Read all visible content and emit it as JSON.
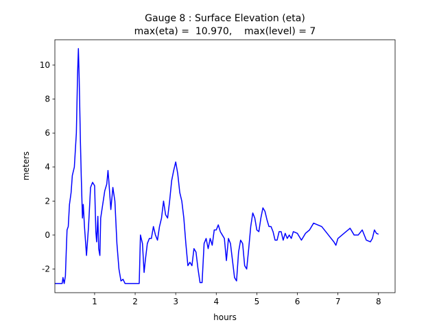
{
  "chart_data": {
    "type": "line",
    "title": "Gauge 8 : Surface Elevation (eta)",
    "subtitle": "max(eta) =  10.970,    max(level) = 7",
    "xlabel": "hours",
    "ylabel": "meters",
    "color": "#0000ff",
    "xlim": [
      0.02,
      8.41
    ],
    "ylim": [
      -3.39,
      11.49
    ],
    "xticks": [
      1,
      2,
      3,
      4,
      5,
      6,
      7,
      8
    ],
    "yticks": [
      -2,
      0,
      2,
      4,
      6,
      8,
      10
    ],
    "grid": false,
    "x": [
      0.02,
      0.2,
      0.22,
      0.25,
      0.28,
      0.3,
      0.32,
      0.35,
      0.38,
      0.42,
      0.45,
      0.5,
      0.55,
      0.58,
      0.6,
      0.62,
      0.65,
      0.67,
      0.7,
      0.72,
      0.75,
      0.8,
      0.85,
      0.9,
      0.95,
      1.0,
      1.03,
      1.05,
      1.08,
      1.1,
      1.13,
      1.15,
      1.2,
      1.25,
      1.3,
      1.33,
      1.35,
      1.4,
      1.45,
      1.5,
      1.55,
      1.6,
      1.65,
      1.7,
      1.75,
      1.9,
      2.1,
      2.13,
      2.18,
      2.22,
      2.25,
      2.3,
      2.35,
      2.4,
      2.45,
      2.5,
      2.55,
      2.6,
      2.65,
      2.7,
      2.75,
      2.8,
      2.85,
      2.9,
      2.95,
      3.0,
      3.05,
      3.1,
      3.15,
      3.2,
      3.25,
      3.3,
      3.35,
      3.4,
      3.45,
      3.5,
      3.55,
      3.6,
      3.65,
      3.7,
      3.75,
      3.8,
      3.85,
      3.9,
      3.95,
      4.0,
      4.05,
      4.1,
      4.15,
      4.2,
      4.25,
      4.3,
      4.35,
      4.4,
      4.45,
      4.5,
      4.55,
      4.6,
      4.65,
      4.7,
      4.75,
      4.8,
      4.85,
      4.9,
      4.95,
      5.0,
      5.05,
      5.1,
      5.15,
      5.2,
      5.25,
      5.3,
      5.35,
      5.4,
      5.45,
      5.5,
      5.55,
      5.6,
      5.65,
      5.7,
      5.75,
      5.8,
      5.85,
      5.9,
      6.0,
      6.1,
      6.2,
      6.3,
      6.4,
      6.5,
      6.6,
      6.7,
      6.8,
      6.9,
      6.95,
      7.0,
      7.1,
      7.2,
      7.3,
      7.4,
      7.5,
      7.6,
      7.7,
      7.8,
      7.85,
      7.9,
      7.95,
      8.0
    ],
    "values": [
      -2.85,
      -2.85,
      -2.5,
      -2.85,
      -2.4,
      -1.0,
      0.3,
      0.5,
      1.8,
      2.5,
      3.5,
      4.0,
      6.0,
      9.5,
      10.97,
      9.2,
      5.5,
      3.5,
      1.0,
      1.8,
      0.5,
      -1.2,
      0.5,
      2.8,
      3.1,
      2.9,
      0.2,
      -0.4,
      1.1,
      -0.8,
      -1.2,
      1.0,
      1.8,
      2.6,
      3.0,
      3.8,
      3.2,
      1.5,
      2.8,
      2.0,
      -0.5,
      -2.0,
      -2.7,
      -2.6,
      -2.85,
      -2.85,
      -2.85,
      0.0,
      -0.5,
      -2.2,
      -1.5,
      -0.5,
      -0.2,
      -0.2,
      0.5,
      0.0,
      -0.3,
      0.5,
      1.0,
      2.0,
      1.2,
      1.0,
      2.0,
      3.2,
      3.8,
      4.3,
      3.6,
      2.5,
      2.0,
      1.0,
      -0.5,
      -1.8,
      -1.6,
      -1.8,
      -0.8,
      -1.0,
      -2.0,
      -2.8,
      -2.8,
      -0.5,
      -0.2,
      -0.8,
      -0.2,
      -0.6,
      0.3,
      0.3,
      0.6,
      0.2,
      0.0,
      -0.2,
      -1.5,
      -0.2,
      -0.5,
      -1.5,
      -2.5,
      -2.7,
      -1.0,
      -0.3,
      -0.5,
      -1.8,
      -2.0,
      -0.8,
      0.5,
      1.3,
      1.0,
      0.3,
      0.2,
      1.0,
      1.6,
      1.4,
      0.9,
      0.5,
      0.5,
      0.2,
      -0.3,
      -0.3,
      0.2,
      0.2,
      -0.3,
      0.1,
      -0.2,
      0.0,
      -0.2,
      0.2,
      0.1,
      -0.3,
      0.1,
      0.3,
      0.7,
      0.6,
      0.5,
      0.2,
      -0.1,
      -0.4,
      -0.6,
      -0.2,
      0.0,
      0.2,
      0.4,
      0.0,
      0.0,
      0.3,
      -0.3,
      -0.4,
      -0.2,
      0.3,
      0.1,
      0.05
    ]
  }
}
